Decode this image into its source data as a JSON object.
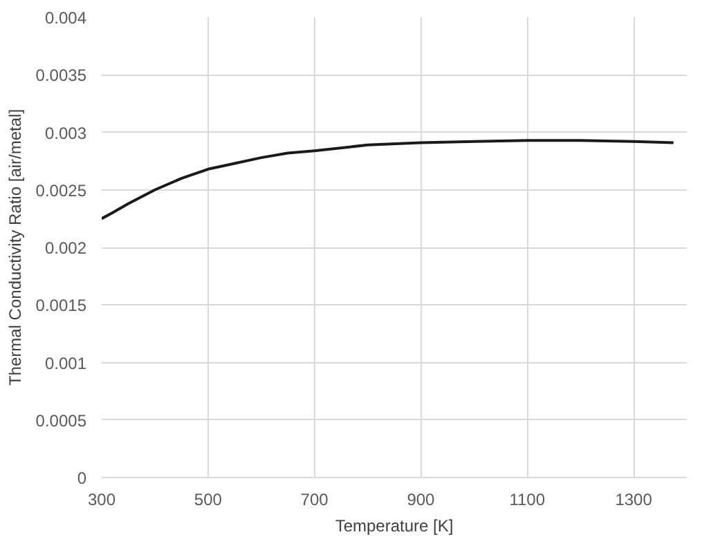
{
  "chart_data": {
    "type": "line",
    "xlabel": "Temperature [K]",
    "ylabel": "Thermal Conductivity Ratio [air/metal]",
    "x": [
      300,
      320,
      350,
      400,
      450,
      500,
      550,
      600,
      650,
      700,
      800,
      900,
      1000,
      1100,
      1200,
      1300,
      1375
    ],
    "series": [
      {
        "color": "#1a1a1a",
        "values": [
          0.00225,
          0.0023,
          0.00238,
          0.0025,
          0.0026,
          0.00268,
          0.00273,
          0.00278,
          0.00282,
          0.00284,
          0.00289,
          0.00291,
          0.00292,
          0.00293,
          0.00293,
          0.00292,
          0.00291
        ]
      }
    ],
    "xlim": [
      300,
      1400
    ],
    "xticks": [
      300,
      500,
      700,
      900,
      1100,
      1300
    ],
    "ylim": [
      0,
      0.004
    ],
    "yticks": [
      0,
      0.0005,
      0.001,
      0.0015,
      0.002,
      0.0025,
      0.003,
      0.0035,
      0.004
    ],
    "grid": true,
    "line_style": "solid",
    "marker": "none"
  }
}
